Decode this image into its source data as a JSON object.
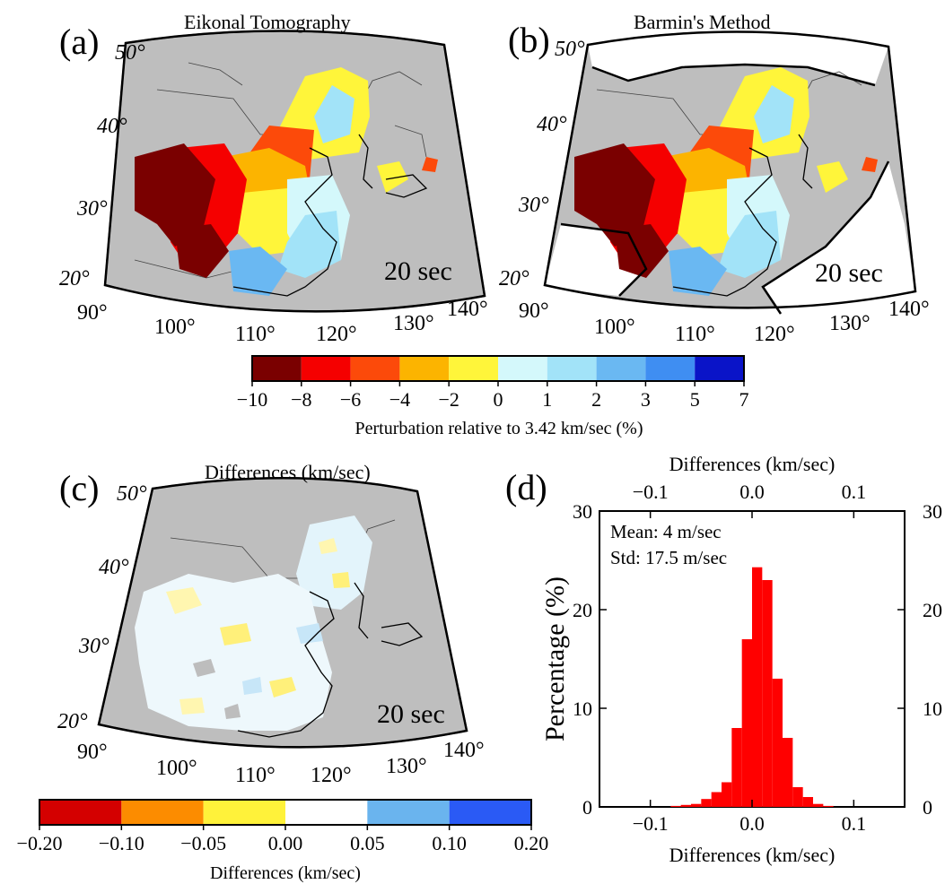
{
  "panels": {
    "a": {
      "label": "(a)",
      "title": "Eikonal Tomography",
      "period": "20 sec",
      "lat_labels": [
        "50°",
        "40°",
        "30°",
        "20°"
      ],
      "lon_labels": [
        "90°",
        "100°",
        "110°",
        "120°",
        "130°",
        "140°"
      ]
    },
    "b": {
      "label": "(b)",
      "title": "Barmin's Method",
      "period": "20 sec",
      "lat_labels": [
        "50°",
        "40°",
        "30°",
        "20°"
      ],
      "lon_labels": [
        "90°",
        "100°",
        "110°",
        "120°",
        "130°",
        "140°"
      ]
    },
    "c": {
      "label": "(c)",
      "title": "Differences (km/sec)",
      "period": "20 sec",
      "lat_labels": [
        "50°",
        "40°",
        "30°",
        "20°"
      ],
      "lon_labels": [
        "90°",
        "100°",
        "110°",
        "120°",
        "130°",
        "140°"
      ]
    },
    "d": {
      "label": "(d)"
    }
  },
  "colorbar_velocity": {
    "title": "Perturbation relative to 3.42 km/sec (%)",
    "ticks": [
      "−10",
      "−8",
      "−6",
      "−4",
      "−2",
      "0",
      "1",
      "2",
      "3",
      "5",
      "7"
    ],
    "colors": [
      "#7a0000",
      "#f50000",
      "#fc4a0a",
      "#fcb400",
      "#fff53a",
      "#d4f8fb",
      "#a2e3f8",
      "#6ab8f2",
      "#3f8ef2",
      "#0a14c8"
    ]
  },
  "colorbar_diff": {
    "title": "Differences (km/sec)",
    "ticks": [
      "−0.20",
      "−0.10",
      "−0.05",
      "0.00",
      "0.05",
      "0.10",
      "0.20"
    ],
    "colors": [
      "#d40000",
      "#fc8c00",
      "#fff23a",
      "#ffffff",
      "#6ab4ee",
      "#2a5af5"
    ]
  },
  "chart_data": {
    "type": "bar",
    "x": [
      -0.075,
      -0.065,
      -0.055,
      -0.045,
      -0.035,
      -0.025,
      -0.015,
      -0.005,
      0.005,
      0.015,
      0.025,
      0.035,
      0.045,
      0.055,
      0.065,
      0.075
    ],
    "values": [
      0.1,
      0.2,
      0.3,
      0.8,
      1.5,
      2.5,
      8.0,
      17.0,
      24.3,
      23.0,
      13.0,
      7.0,
      2.0,
      1.0,
      0.3,
      0.1
    ],
    "xlabel": "Differences (km/sec)",
    "xlabel_top": "Differences (km/sec)",
    "ylabel": "Percentage (%)",
    "xlim": [
      -0.15,
      0.15
    ],
    "ylim": [
      0,
      30
    ],
    "xticks": [
      -0.1,
      0.0,
      0.1
    ],
    "xtick_labels": [
      "−0.1",
      "0.0",
      "0.1"
    ],
    "yticks": [
      0,
      10,
      20,
      30
    ],
    "ytick_labels": [
      "0",
      "10",
      "20",
      "30"
    ],
    "stats": {
      "mean": "Mean: 4 m/sec",
      "std": "Std: 17.5 m/sec"
    },
    "bar_color": "#ff0000"
  },
  "map_colors": {
    "land": "#bebebe",
    "ocean": "#bebebe"
  }
}
